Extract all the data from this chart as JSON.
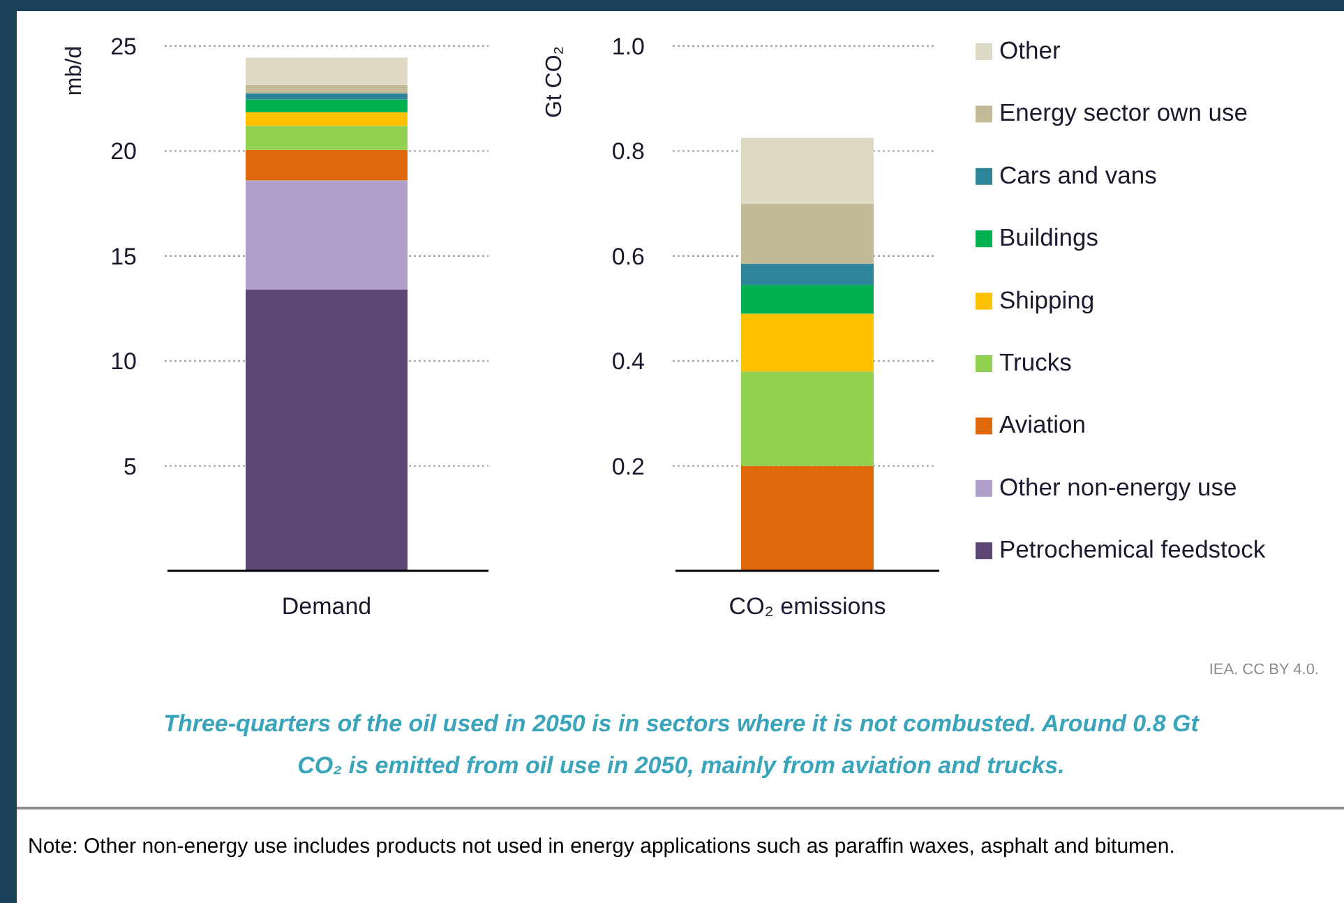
{
  "chart_data": [
    {
      "type": "bar",
      "stacked": true,
      "categories": [
        "Demand"
      ],
      "ylabel": "mb/d",
      "ylim": [
        0,
        25
      ],
      "yticks": [
        5,
        10,
        15,
        20,
        25
      ],
      "grid": "y",
      "series": [
        {
          "color": "#5e4776",
          "values": [
            13.4
          ]
        },
        {
          "color": "#b09fc8",
          "values": [
            5.2
          ]
        },
        {
          "color": "#e0690b",
          "values": [
            1.45
          ]
        },
        {
          "color": "#92d050",
          "values": [
            1.15
          ]
        },
        {
          "color": "#ffc000",
          "values": [
            0.65
          ]
        },
        {
          "color": "#00b050",
          "values": [
            0.6
          ]
        },
        {
          "color": "#2e8599",
          "values": [
            0.3
          ]
        },
        {
          "color": "#c3bb98",
          "values": [
            0.4
          ]
        },
        {
          "color": "#ddd9c4",
          "values": [
            1.3
          ]
        }
      ]
    },
    {
      "type": "bar",
      "stacked": true,
      "categories": [
        "CO₂ emissions"
      ],
      "ylabel": "Gt CO₂",
      "ylim": [
        0,
        1
      ],
      "yticks": [
        0.2,
        0.4,
        0.6,
        0.8,
        {
          "value": 1,
          "label": "1.0"
        }
      ],
      "grid": "y",
      "legend": "right",
      "series": [
        {
          "name": "Petrochemical feedstock",
          "color": "#5e4776",
          "values": [
            null
          ]
        },
        {
          "name": "Other non-energy use",
          "color": "#b09fc8",
          "values": [
            null
          ]
        },
        {
          "name": "Aviation",
          "color": "#e0690b",
          "values": [
            0.2
          ]
        },
        {
          "name": "Trucks",
          "color": "#92d050",
          "values": [
            0.18
          ]
        },
        {
          "name": "Shipping",
          "color": "#ffc000",
          "values": [
            0.11
          ]
        },
        {
          "name": "Buildings",
          "color": "#00b050",
          "values": [
            0.055
          ]
        },
        {
          "name": "Cars and vans",
          "color": "#2e8599",
          "values": [
            0.04
          ]
        },
        {
          "name": "Energy sector own use",
          "color": "#c3bb98",
          "values": [
            0.115
          ]
        },
        {
          "name": "Other",
          "color": "#ddd9c4",
          "values": [
            0.125
          ]
        }
      ],
      "annotations": [
        "IEA. CC BY 4.0.",
        "Three-quarters of the oil used in 2050 is in sectors where it is not combusted. Around 0.8 Gt CO₂ is emitted from oil use in 2050, mainly from aviation and trucks.",
        "Note: Other non-energy use includes products not used in energy applications such as paraffin waxes, asphalt and bitumen."
      ]
    }
  ]
}
